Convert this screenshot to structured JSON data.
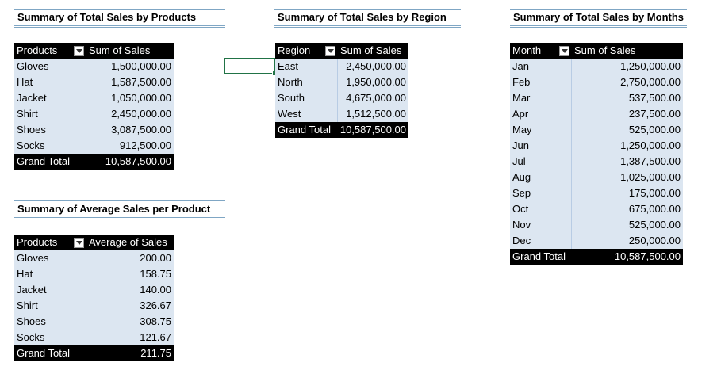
{
  "products_table": {
    "title": "Summary of Total Sales by Products",
    "header": {
      "label": "Products",
      "value": "Sum of Sales"
    },
    "rows": [
      {
        "label": "Gloves",
        "value": "1,500,000.00"
      },
      {
        "label": "Hat",
        "value": "1,587,500.00"
      },
      {
        "label": "Jacket",
        "value": "1,050,000.00"
      },
      {
        "label": "Shirt",
        "value": "2,450,000.00"
      },
      {
        "label": "Shoes",
        "value": "3,087,500.00"
      },
      {
        "label": "Socks",
        "value": "912,500.00"
      }
    ],
    "total": {
      "label": "Grand Total",
      "value": "10,587,500.00"
    }
  },
  "region_table": {
    "title": "Summary of Total Sales by Region",
    "header": {
      "label": "Region",
      "value": "Sum of Sales"
    },
    "rows": [
      {
        "label": "East",
        "value": "2,450,000.00"
      },
      {
        "label": "North",
        "value": "1,950,000.00"
      },
      {
        "label": "South",
        "value": "4,675,000.00"
      },
      {
        "label": "West",
        "value": "1,512,500.00"
      }
    ],
    "total": {
      "label": "Grand Total",
      "value": "10,587,500.00"
    }
  },
  "months_table": {
    "title": "Summary of Total Sales by Months",
    "header": {
      "label": "Month",
      "value": "Sum of Sales"
    },
    "rows": [
      {
        "label": "Jan",
        "value": "1,250,000.00"
      },
      {
        "label": "Feb",
        "value": "2,750,000.00"
      },
      {
        "label": "Mar",
        "value": "537,500.00"
      },
      {
        "label": "Apr",
        "value": "237,500.00"
      },
      {
        "label": "May",
        "value": "525,000.00"
      },
      {
        "label": "Jun",
        "value": "1,250,000.00"
      },
      {
        "label": "Jul",
        "value": "1,387,500.00"
      },
      {
        "label": "Aug",
        "value": "1,025,000.00"
      },
      {
        "label": "Sep",
        "value": "175,000.00"
      },
      {
        "label": "Oct",
        "value": "675,000.00"
      },
      {
        "label": "Nov",
        "value": "525,000.00"
      },
      {
        "label": "Dec",
        "value": "250,000.00"
      }
    ],
    "total": {
      "label": "Grand Total",
      "value": "10,587,500.00"
    }
  },
  "average_table": {
    "title": "Summary of Average Sales per Product",
    "header": {
      "label": "Products",
      "value": "Average of Sales"
    },
    "rows": [
      {
        "label": "Gloves",
        "value": "200.00"
      },
      {
        "label": "Hat",
        "value": "158.75"
      },
      {
        "label": "Jacket",
        "value": "140.00"
      },
      {
        "label": "Shirt",
        "value": "326.67"
      },
      {
        "label": "Shoes",
        "value": "308.75"
      },
      {
        "label": "Socks",
        "value": "121.67"
      }
    ],
    "total": {
      "label": "Grand Total",
      "value": "211.75"
    }
  },
  "icons": {
    "filter_dropdown": "filter-dropdown-icon"
  }
}
